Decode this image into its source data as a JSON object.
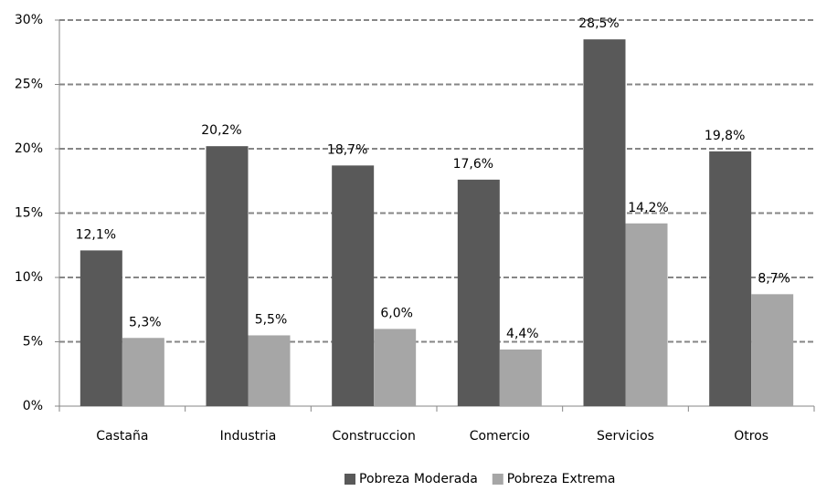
{
  "chart_data": {
    "type": "bar",
    "categories": [
      "Castaña",
      "Industria",
      "Construccion",
      "Comercio",
      "Servicios",
      "Otros"
    ],
    "series": [
      {
        "name": "Pobreza Moderada",
        "color": "#595959",
        "values": [
          12.1,
          20.2,
          18.7,
          17.6,
          28.5,
          19.8
        ],
        "value_labels": [
          "12,1%",
          "20,2%",
          "18,7%",
          "17,6%",
          "28,5%",
          "19,8%"
        ]
      },
      {
        "name": "Pobreza Extrema",
        "color": "#a6a6a6",
        "values": [
          5.3,
          5.5,
          6.0,
          4.4,
          14.2,
          8.7
        ],
        "value_labels": [
          "5,3%",
          "5,5%",
          "6,0%",
          "4,4%",
          "14,2%",
          "8,7%"
        ]
      }
    ],
    "ylim": [
      0,
      30
    ],
    "yticks": [
      {
        "value": 0,
        "label": "0%"
      },
      {
        "value": 5,
        "label": "5%"
      },
      {
        "value": 10,
        "label": "10%"
      },
      {
        "value": 15,
        "label": "15%"
      },
      {
        "value": 20,
        "label": "20%"
      },
      {
        "value": 25,
        "label": "25%"
      },
      {
        "value": 30,
        "label": "30%"
      }
    ],
    "grid": true,
    "legend": "bottom"
  }
}
